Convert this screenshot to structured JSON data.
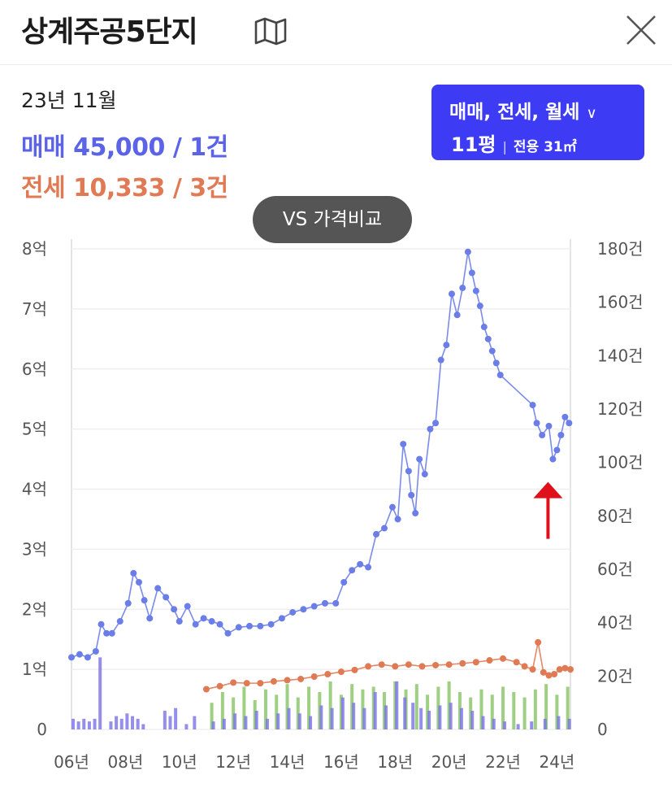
{
  "header": {
    "title": "상계주공5단지",
    "map_icon": "map-icon",
    "close_icon": "close-icon"
  },
  "summary": {
    "period": "23년 11월",
    "sale_text": "매매 45,000 / 1건",
    "jeonse_text": "전세 10,333 / 3건"
  },
  "filter": {
    "types": "매매, 전세, 월세",
    "size": "11평",
    "area": "전용 31㎡"
  },
  "compare_button": "VS 가격비교",
  "colors": {
    "sale": "#5b63e6",
    "jeonse": "#e07a55",
    "filter_bg": "#3d3bf3",
    "arrow": "#e0101a"
  },
  "chart_data": {
    "type": "line",
    "left_ticks": [
      "0",
      "1억",
      "2억",
      "3억",
      "4억",
      "5억",
      "6억",
      "7억",
      "8억"
    ],
    "right_ticks": [
      "0",
      "20건",
      "40건",
      "60건",
      "80건",
      "100건",
      "120건",
      "140건",
      "160건",
      "180건"
    ],
    "x_ticks": [
      "06년",
      "08년",
      "10년",
      "12년",
      "14년",
      "16년",
      "18년",
      "20년",
      "22년",
      "24년"
    ],
    "xlim": [
      2006.0,
      2024.5
    ],
    "ylim_left": [
      0,
      8
    ],
    "ylim_right": [
      0,
      180
    ],
    "grid": true,
    "series": [
      {
        "key": "sale",
        "x": [
          2006.0,
          2006.3,
          2006.6,
          2006.9,
          2007.1,
          2007.3,
          2007.5,
          2007.8,
          2008.1,
          2008.3,
          2008.5,
          2008.7,
          2008.9,
          2009.2,
          2009.5,
          2009.8,
          2010.0,
          2010.3,
          2010.6,
          2010.9,
          2011.2,
          2011.5,
          2011.8,
          2012.2,
          2012.6,
          2013.0,
          2013.4,
          2013.8,
          2014.2,
          2014.6,
          2015.0,
          2015.4,
          2015.8,
          2016.1,
          2016.4,
          2016.7,
          2017.0,
          2017.3,
          2017.6,
          2017.9,
          2018.1,
          2018.3,
          2018.5,
          2018.6,
          2018.75,
          2018.9,
          2019.1,
          2019.3,
          2019.5,
          2019.7,
          2019.9,
          2020.1,
          2020.3,
          2020.5,
          2020.7,
          2020.85,
          2021.0,
          2021.15,
          2021.3,
          2021.45,
          2021.6,
          2021.75,
          2021.9,
          2023.1,
          2023.25,
          2023.45,
          2023.7,
          2023.85,
          2024.0,
          2024.15,
          2024.3,
          2024.45
        ],
        "values": [
          1.2,
          1.25,
          1.2,
          1.3,
          1.75,
          1.6,
          1.6,
          1.8,
          2.1,
          2.6,
          2.45,
          2.15,
          1.85,
          2.35,
          2.2,
          2.0,
          1.8,
          2.05,
          1.75,
          1.85,
          1.8,
          1.75,
          1.6,
          1.7,
          1.72,
          1.72,
          1.75,
          1.85,
          1.95,
          2.0,
          2.05,
          2.1,
          2.1,
          2.45,
          2.65,
          2.75,
          2.7,
          3.25,
          3.35,
          3.7,
          3.5,
          4.75,
          4.3,
          3.9,
          3.6,
          4.5,
          4.25,
          5.0,
          5.1,
          6.15,
          6.4,
          7.25,
          6.9,
          7.35,
          7.95,
          7.6,
          7.3,
          7.05,
          6.7,
          6.5,
          6.3,
          6.1,
          5.9,
          5.4,
          5.1,
          4.9,
          5.05,
          4.5,
          4.65,
          4.9,
          5.2,
          5.1
        ]
      },
      {
        "key": "jeonse",
        "x": [
          2011.0,
          2011.5,
          2012.0,
          2012.5,
          2013.0,
          2013.5,
          2014.0,
          2014.5,
          2015.0,
          2015.5,
          2016.0,
          2016.5,
          2017.0,
          2017.5,
          2018.0,
          2018.5,
          2019.0,
          2019.5,
          2020.0,
          2020.5,
          2021.0,
          2021.5,
          2022.0,
          2022.5,
          2022.8,
          2023.1,
          2023.3,
          2023.5,
          2023.7,
          2023.9,
          2024.1,
          2024.3,
          2024.5
        ],
        "values": [
          0.67,
          0.72,
          0.78,
          0.77,
          0.77,
          0.8,
          0.82,
          0.84,
          0.88,
          0.92,
          0.96,
          0.99,
          1.05,
          1.08,
          1.05,
          1.08,
          1.05,
          1.07,
          1.08,
          1.1,
          1.12,
          1.15,
          1.18,
          1.12,
          1.05,
          1.0,
          1.45,
          0.95,
          0.9,
          0.92,
          1.0,
          1.02,
          1.0
        ]
      }
    ],
    "volume_bars": {
      "note": "sale and jeonse transaction counts (right axis)",
      "sale_x": [
        2006.0,
        2006.2,
        2006.4,
        2006.6,
        2006.8,
        2007.0,
        2007.4,
        2007.6,
        2007.8,
        2008.0,
        2008.2,
        2008.4,
        2008.6,
        2009.4,
        2009.6,
        2009.8,
        2010.2,
        2010.5,
        2011.2,
        2011.6,
        2012.0,
        2012.4,
        2012.8,
        2013.2,
        2013.6,
        2014.0,
        2014.4,
        2014.8,
        2015.2,
        2015.6,
        2016.0,
        2016.4,
        2016.8,
        2017.2,
        2017.6,
        2018.0,
        2018.3,
        2018.6,
        2018.9,
        2019.2,
        2019.6,
        2020.0,
        2020.4,
        2020.8,
        2021.2,
        2021.6,
        2022.0,
        2022.5,
        2023.0,
        2023.5,
        2024.0,
        2024.4
      ],
      "sale_counts": [
        4,
        3,
        4,
        3,
        4,
        27,
        3,
        5,
        4,
        6,
        5,
        4,
        2,
        7,
        5,
        8,
        2,
        5,
        3,
        4,
        6,
        5,
        7,
        4,
        6,
        8,
        6,
        5,
        9,
        8,
        12,
        10,
        8,
        14,
        9,
        18,
        12,
        10,
        8,
        7,
        9,
        10,
        8,
        7,
        5,
        4,
        3,
        2,
        3,
        4,
        5,
        4
      ],
      "jeonse_x": [
        2011.2,
        2011.6,
        2012.0,
        2012.4,
        2012.8,
        2013.2,
        2013.6,
        2014.0,
        2014.4,
        2014.8,
        2015.2,
        2015.6,
        2016.0,
        2016.4,
        2016.8,
        2017.2,
        2017.6,
        2018.0,
        2018.4,
        2018.8,
        2019.2,
        2019.6,
        2020.0,
        2020.4,
        2020.8,
        2021.2,
        2021.6,
        2022.0,
        2022.4,
        2022.8,
        2023.2,
        2023.6,
        2024.0,
        2024.4
      ],
      "jeonse_counts": [
        10,
        14,
        12,
        16,
        11,
        15,
        13,
        17,
        12,
        16,
        14,
        18,
        13,
        17,
        15,
        16,
        14,
        18,
        15,
        17,
        13,
        16,
        18,
        14,
        12,
        15,
        13,
        16,
        14,
        12,
        15,
        17,
        13,
        16
      ]
    },
    "annotation": {
      "type": "arrow",
      "points_to_x": 2023.85,
      "points_to_y": 4.5
    }
  }
}
